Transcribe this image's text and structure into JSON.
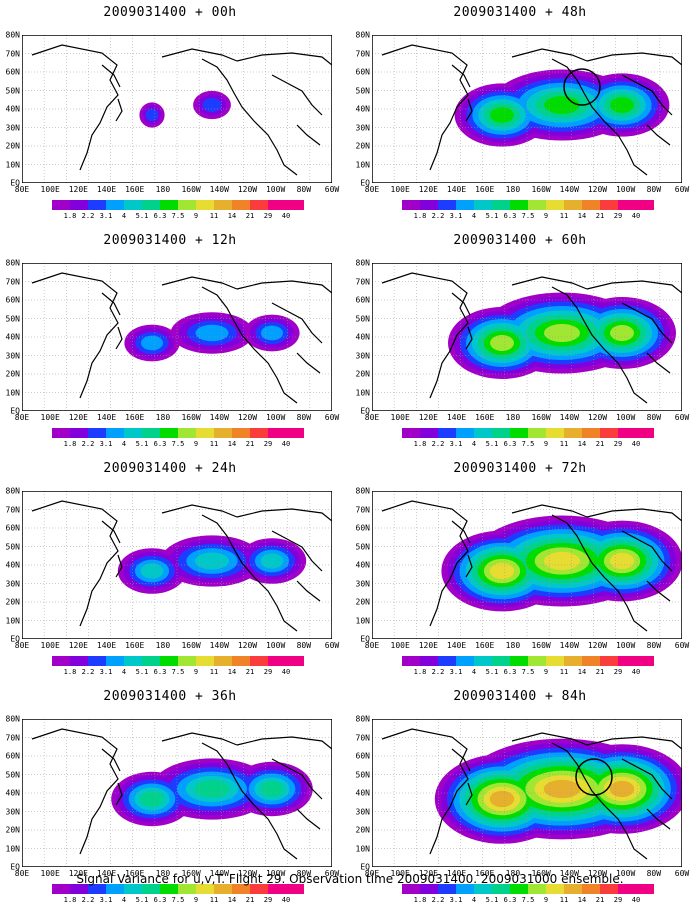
{
  "x_tick_labels": [
    "80E",
    "100E",
    "120E",
    "140E",
    "160E",
    "180",
    "160W",
    "140W",
    "120W",
    "100W",
    "80W",
    "60W"
  ],
  "y_tick_labels": [
    "EQ",
    "10N",
    "20N",
    "30N",
    "40N",
    "50N",
    "60N",
    "70N",
    "80N"
  ],
  "colorbar": {
    "labels": [
      "1.8",
      "2.2",
      "3.1",
      "4",
      "5.1",
      "6.3",
      "7.5",
      "9",
      "11",
      "14",
      "21",
      "29",
      "40"
    ],
    "colors": [
      "#a000c8",
      "#8200dc",
      "#1e3cff",
      "#00a0ff",
      "#00c8c8",
      "#00d28c",
      "#00dc00",
      "#a0e632",
      "#e6dc32",
      "#e6af2d",
      "#f08228",
      "#fa3c3c",
      "#f00082"
    ]
  },
  "panels": [
    {
      "title": "2009031400 + 00h",
      "intensity": 0,
      "circle": false
    },
    {
      "title": "2009031400 + 12h",
      "intensity": 1,
      "circle": false
    },
    {
      "title": "2009031400 + 24h",
      "intensity": 2,
      "circle": false
    },
    {
      "title": "2009031400 + 36h",
      "intensity": 3,
      "circle": false
    },
    {
      "title": "2009031400 + 48h",
      "intensity": 4,
      "circle": true
    },
    {
      "title": "2009031400 + 60h",
      "intensity": 5,
      "circle": false
    },
    {
      "title": "2009031400 + 72h",
      "intensity": 6,
      "circle": false
    },
    {
      "title": "2009031400 + 84h",
      "intensity": 7,
      "circle": true
    }
  ],
  "caption": "Signal Variance for u,v,T. Flight 29. Observation time 2009031400. 2009031000 ensemble."
}
